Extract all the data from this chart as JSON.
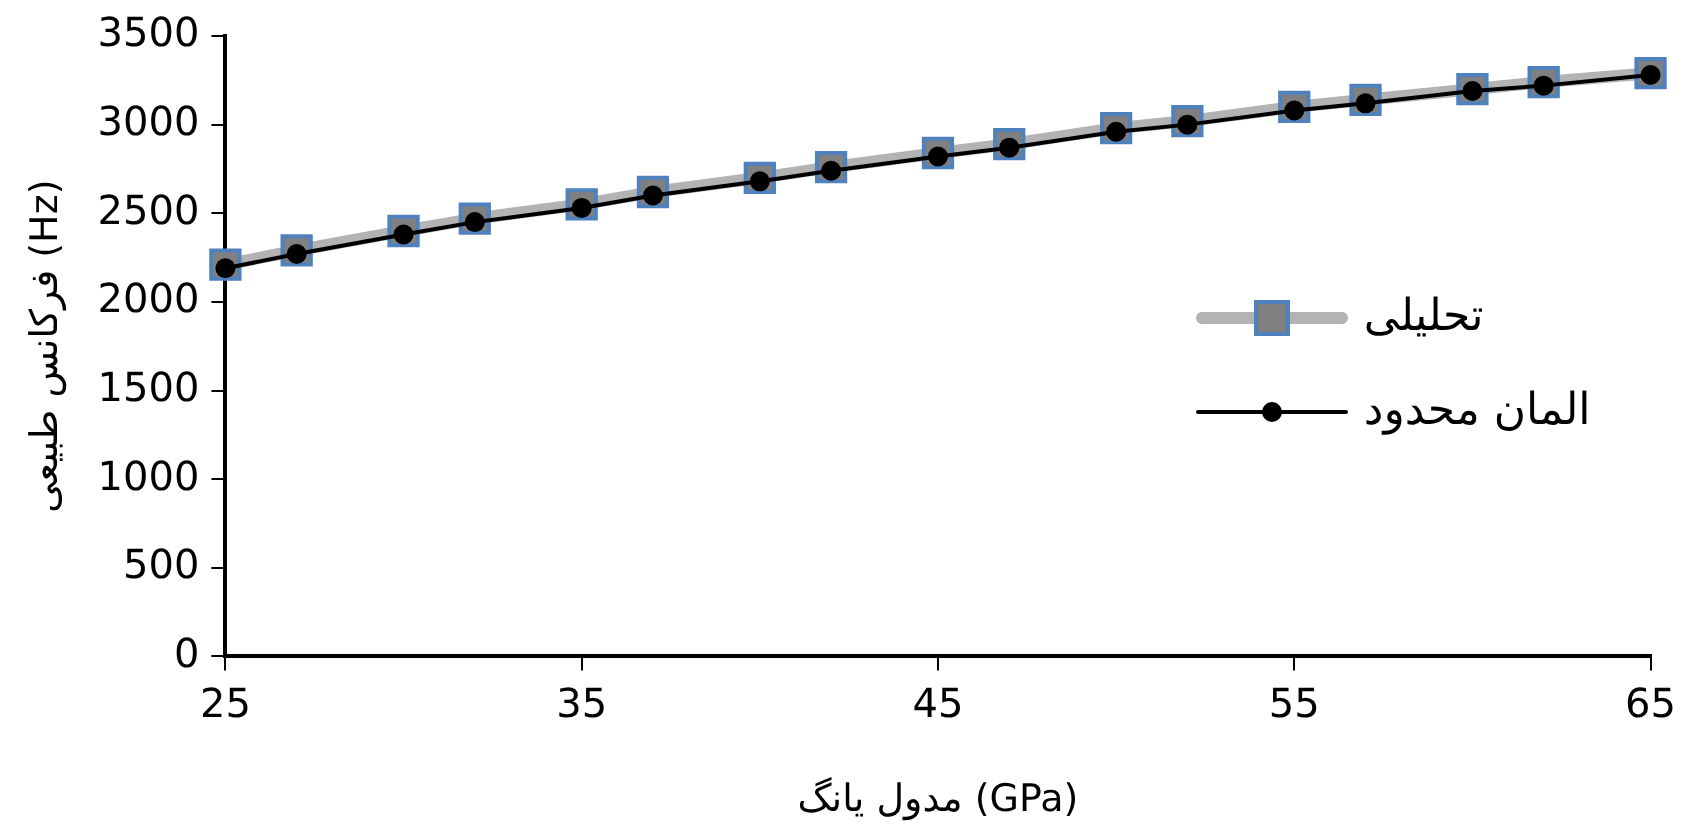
{
  "chart_data": {
    "type": "line",
    "xlabel": "مدول یانگ (GPa)",
    "ylabel": "فرکانس طبیعی (Hz)",
    "x": [
      25,
      27,
      30,
      32,
      35,
      37,
      40,
      42,
      45,
      47,
      50,
      52,
      55,
      57,
      60,
      62,
      65
    ],
    "series": [
      {
        "name": "تحلیلی",
        "color": "#808080",
        "marker": "square",
        "values": [
          2210,
          2290,
          2400,
          2470,
          2550,
          2620,
          2700,
          2760,
          2840,
          2890,
          2980,
          3020,
          3100,
          3140,
          3200,
          3240,
          3290
        ]
      },
      {
        "name": "المان محدود",
        "color": "#000000",
        "marker": "circle",
        "values": [
          2190,
          2270,
          2380,
          2450,
          2530,
          2600,
          2680,
          2740,
          2820,
          2870,
          2960,
          3000,
          3080,
          3120,
          3190,
          3220,
          3280
        ]
      }
    ],
    "xlim": [
      25,
      65
    ],
    "xticks": [
      25,
      35,
      45,
      55,
      65
    ],
    "ylim": [
      0,
      3500
    ],
    "yticks": [
      0,
      500,
      1000,
      1500,
      2000,
      2500,
      3000,
      3500
    ],
    "grid": false,
    "legend": "right",
    "line_style": "solid"
  }
}
